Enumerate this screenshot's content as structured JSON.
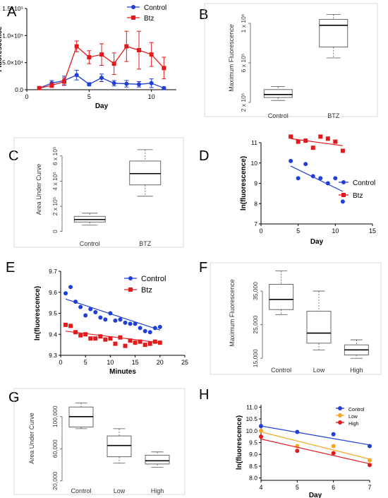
{
  "colors": {
    "control": "#1f3fd6",
    "btz": "#e31a1c",
    "low": "#f5a623",
    "high": "#e31a1c"
  },
  "panels": {
    "A": {
      "letter": "A"
    },
    "B": {
      "letter": "B"
    },
    "C": {
      "letter": "C"
    },
    "D": {
      "letter": "D"
    },
    "E": {
      "letter": "E"
    },
    "F": {
      "letter": "F"
    },
    "G": {
      "letter": "G"
    },
    "H": {
      "letter": "H"
    }
  },
  "chart_data": [
    {
      "id": "A",
      "type": "line",
      "xlabel": "Day",
      "ylabel": "Fluorescence",
      "xlim": [
        0,
        12
      ],
      "ylim": [
        0,
        150000
      ],
      "xticks": [
        "0",
        "5",
        "10"
      ],
      "yticks": [
        "0.0",
        "5.0×10⁴",
        "1.0×10⁵",
        "1.5×10⁵"
      ],
      "legend": "top-right",
      "series": [
        {
          "name": "Control",
          "x": [
            1,
            2,
            3,
            4,
            5,
            6,
            7,
            8,
            9,
            10,
            11
          ],
          "y": [
            3000,
            12000,
            17000,
            27000,
            10000,
            22000,
            12000,
            11000,
            10000,
            12000,
            3000
          ],
          "err": [
            2000,
            5000,
            8000,
            9000,
            3000,
            7000,
            5000,
            6000,
            5000,
            8000,
            2000
          ]
        },
        {
          "name": "Btz",
          "x": [
            1,
            2,
            3,
            4,
            5,
            6,
            7,
            8,
            9,
            10,
            11
          ],
          "y": [
            3000,
            8000,
            15000,
            80000,
            60000,
            65000,
            48000,
            80000,
            73000,
            65000,
            40000
          ],
          "err": [
            2000,
            4000,
            7000,
            10000,
            12000,
            20000,
            20000,
            28000,
            35000,
            22000,
            20000
          ]
        }
      ]
    },
    {
      "id": "B",
      "type": "box",
      "ylabel": "Maximum Fluorescence",
      "ylim": [
        150000,
        1150000
      ],
      "yticks": [
        {
          "value": 200000,
          "label": "2 x 10⁵"
        },
        {
          "value": 600000,
          "label": "6 x 10⁵"
        },
        {
          "value": 1000000,
          "label": "1 x 10⁶"
        }
      ],
      "categories": [
        "Control",
        "BTZ"
      ],
      "boxes": [
        {
          "min": 220000,
          "q1": 250000,
          "median": 280000,
          "q3": 330000,
          "max": 360000
        },
        {
          "min": 650000,
          "q1": 760000,
          "median": 980000,
          "q3": 1040000,
          "max": 1090000
        }
      ]
    },
    {
      "id": "C",
      "type": "box",
      "ylabel": "Area Under Curve",
      "ylim": [
        -30000,
        700000
      ],
      "yticks": [
        {
          "value": 0,
          "label": "0"
        },
        {
          "value": 200000,
          "label": "2 x 10⁵"
        },
        {
          "value": 400000,
          "label": "4 x 10⁵"
        },
        {
          "value": 600000,
          "label": "6 x 10⁵"
        }
      ],
      "categories": [
        "Control",
        "BTZ"
      ],
      "boxes": [
        {
          "min": 50000,
          "q1": 75000,
          "median": 95000,
          "q3": 120000,
          "max": 145000
        },
        {
          "min": 280000,
          "q1": 370000,
          "median": 460000,
          "q3": 560000,
          "max": 650000
        }
      ]
    },
    {
      "id": "D",
      "type": "scatter",
      "xlabel": "Day",
      "ylabel": "ln(fluorescence)",
      "xlim": [
        0,
        15
      ],
      "ylim": [
        7,
        11
      ],
      "xticks": [
        "0",
        "5",
        "10",
        "15"
      ],
      "yticks": [
        "7",
        "8",
        "9",
        "10",
        "11"
      ],
      "legend": "right",
      "series": [
        {
          "name": "Control",
          "x": [
            4,
            5,
            6,
            7,
            8,
            9,
            10,
            11
          ],
          "y": [
            10.1,
            9.25,
            9.95,
            9.35,
            9.25,
            9.0,
            9.25,
            8.1
          ],
          "fit": [
            [
              4,
              9.85
            ],
            [
              11,
              8.6
            ]
          ]
        },
        {
          "name": "Btz",
          "x": [
            4,
            5,
            6,
            7,
            8,
            9,
            10,
            11
          ],
          "y": [
            11.3,
            11.05,
            11.1,
            10.75,
            11.3,
            11.2,
            11.05,
            10.6
          ],
          "fit": [
            [
              4,
              11.2
            ],
            [
              11,
              10.85
            ]
          ]
        }
      ]
    },
    {
      "id": "E",
      "type": "scatter",
      "xlabel": "Minutes",
      "ylabel": "ln(fluorescence)",
      "xlim": [
        0,
        25
      ],
      "ylim": [
        9.3,
        9.7
      ],
      "xticks": [
        "0",
        "5",
        "10",
        "15",
        "20",
        "25"
      ],
      "yticks": [
        "9.3",
        "9.4",
        "9.5",
        "9.6",
        "9.7"
      ],
      "legend": "top-right",
      "series": [
        {
          "name": "Control",
          "x": [
            1,
            2,
            3,
            4,
            5,
            6,
            7,
            8,
            9,
            10,
            11,
            12,
            13,
            14,
            15,
            16,
            17,
            18,
            19,
            20
          ],
          "y": [
            9.595,
            9.625,
            9.555,
            9.53,
            9.49,
            9.52,
            9.505,
            9.48,
            9.47,
            9.5,
            9.465,
            9.47,
            9.455,
            9.45,
            9.45,
            9.43,
            9.415,
            9.41,
            9.43,
            9.435
          ],
          "fit": [
            [
              1,
              9.568
            ],
            [
              20,
              9.42
            ]
          ]
        },
        {
          "name": "Btz",
          "x": [
            1,
            2,
            3,
            4,
            5,
            6,
            7,
            8,
            9,
            10,
            11,
            12,
            13,
            14,
            15,
            16,
            17,
            18,
            19,
            20
          ],
          "y": [
            9.445,
            9.44,
            9.41,
            9.395,
            9.4,
            9.38,
            9.38,
            9.39,
            9.375,
            9.38,
            9.355,
            9.385,
            9.345,
            9.37,
            9.36,
            9.365,
            9.35,
            9.355,
            9.365,
            9.36
          ],
          "fit": [
            [
              1,
              9.415
            ],
            [
              20,
              9.36
            ]
          ]
        }
      ]
    },
    {
      "id": "F",
      "type": "box",
      "ylabel": "Maximum Fluorescence",
      "ylim": [
        14000,
        43000
      ],
      "yticks": [
        {
          "value": 15000,
          "label": "15,000"
        },
        {
          "value": 25000,
          "label": "25,000"
        },
        {
          "value": 35000,
          "label": "35,000"
        }
      ],
      "categories": [
        "Control",
        "Low",
        "High"
      ],
      "boxes": [
        {
          "min": 28000,
          "q1": 29500,
          "median": 32500,
          "q3": 37000,
          "max": 41000
        },
        {
          "min": 17500,
          "q1": 19500,
          "median": 22500,
          "q3": 29000,
          "max": 35000
        },
        {
          "min": 15000,
          "q1": 16000,
          "median": 17500,
          "q3": 19000,
          "max": 20500
        }
      ]
    },
    {
      "id": "G",
      "type": "box",
      "ylabel": "Area Under Curve",
      "ylim": [
        18000,
        128000
      ],
      "yticks": [
        {
          "value": 20000,
          "label": "20,000"
        },
        {
          "value": 60000,
          "label": "60,000"
        },
        {
          "value": 100000,
          "label": "100,000"
        }
      ],
      "categories": [
        "Control",
        "Low",
        "High"
      ],
      "boxes": [
        {
          "min": 85000,
          "q1": 87000,
          "median": 100000,
          "q3": 112000,
          "max": 117000
        },
        {
          "min": 42000,
          "q1": 50000,
          "median": 64000,
          "q3": 76000,
          "max": 85000
        },
        {
          "min": 37000,
          "q1": 41000,
          "median": 45000,
          "q3": 52000,
          "max": 56000
        }
      ]
    },
    {
      "id": "H",
      "type": "scatter",
      "xlabel": "Day",
      "ylabel": "ln(fluorescence)",
      "xlim": [
        4,
        7
      ],
      "ylim": [
        7.9,
        11.1
      ],
      "xticks": [
        "4",
        "5",
        "6",
        "7"
      ],
      "yticks": [
        "8.0",
        "8.5",
        "9.0",
        "9.5",
        "10.0",
        "10.5",
        "11.0"
      ],
      "legend": "top-right",
      "series": [
        {
          "name": "Control",
          "x": [
            4,
            5,
            6,
            7
          ],
          "y": [
            10.2,
            9.95,
            9.85,
            9.35
          ],
          "fit": [
            [
              4,
              10.2
            ],
            [
              7,
              9.4
            ]
          ]
        },
        {
          "name": "Low",
          "x": [
            4,
            5,
            6,
            7
          ],
          "y": [
            10.0,
            9.35,
            9.35,
            8.75
          ],
          "fit": [
            [
              4,
              9.95
            ],
            [
              7,
              8.8
            ]
          ]
        },
        {
          "name": "High",
          "x": [
            4,
            5,
            6,
            7
          ],
          "y": [
            9.75,
            9.15,
            9.05,
            8.55
          ],
          "fit": [
            [
              4,
              9.65
            ],
            [
              7,
              8.6
            ]
          ]
        }
      ]
    }
  ]
}
